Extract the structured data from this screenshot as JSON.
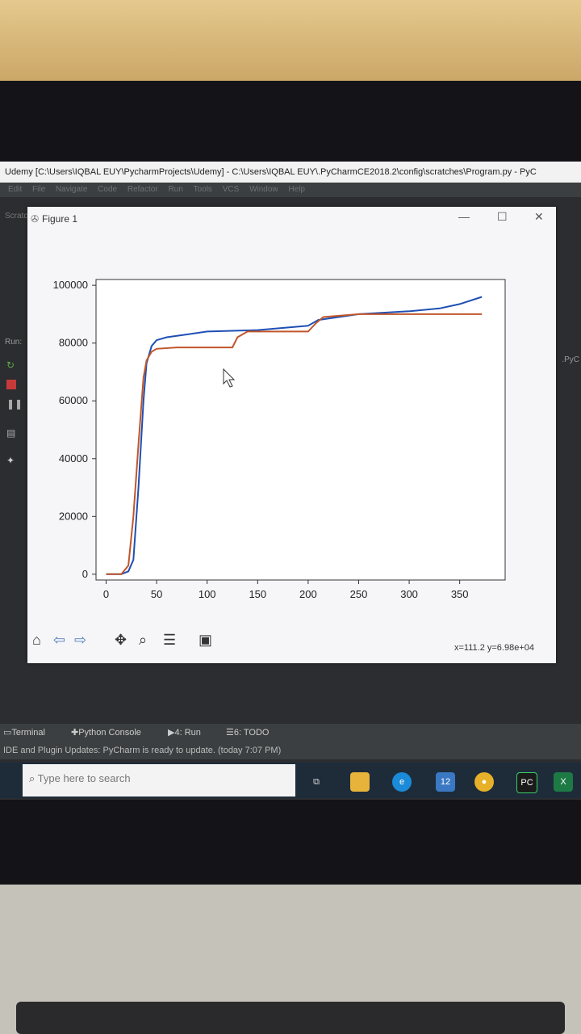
{
  "ide": {
    "title": "Udemy [C:\\Users\\IQBAL EUY\\PycharmProjects\\Udemy] - C:\\Users\\IQBAL EUY\\.PyCharmCE2018.2\\config\\scratches\\Program.py - PyC",
    "menu": [
      "Edit",
      "File",
      "Navigate",
      "Code",
      "Refactor",
      "Run",
      "Tools",
      "VCS",
      "Window",
      "Help"
    ],
    "left_tab": "Scratc",
    "run_label": "Run:",
    "right_label": ".PyC"
  },
  "figure": {
    "window_title": "Figure 1",
    "toolbar": [
      "home-icon",
      "back-icon",
      "forward-icon",
      "pan-icon",
      "zoom-icon",
      "configure-icon",
      "save-icon"
    ],
    "coord_readout": "x=111.2 y=6.98e+04"
  },
  "chart_data": {
    "type": "line",
    "title": "",
    "xlabel": "",
    "ylabel": "",
    "xlim": [
      -10,
      395
    ],
    "ylim": [
      -2000,
      102000
    ],
    "xticks": [
      0,
      50,
      100,
      150,
      200,
      250,
      300,
      350
    ],
    "yticks": [
      0,
      20000,
      40000,
      60000,
      80000,
      100000
    ],
    "ytick_labels": [
      "0",
      "20000",
      "40000",
      "60000",
      "80000",
      "100000"
    ],
    "xtick_labels": [
      "0",
      "50",
      "100",
      "150",
      "200",
      "250",
      "300",
      "350"
    ],
    "series": [
      {
        "color": "#1f4fb4",
        "x": [
          0,
          15,
          22,
          27,
          32,
          37,
          40,
          45,
          50,
          60,
          80,
          100,
          150,
          200,
          210,
          250,
          300,
          330,
          350,
          372
        ],
        "y": [
          0,
          0,
          1000,
          5000,
          30000,
          60000,
          73000,
          79000,
          81000,
          82000,
          83000,
          84000,
          84500,
          86000,
          88000,
          90000,
          91000,
          92000,
          93500,
          96000
        ]
      },
      {
        "color": "#c0562a",
        "x": [
          0,
          15,
          22,
          27,
          32,
          37,
          40,
          45,
          50,
          70,
          100,
          125,
          130,
          140,
          150,
          170,
          200,
          208,
          215,
          250,
          300,
          350,
          372
        ],
        "y": [
          0,
          0,
          3000,
          20000,
          45000,
          68000,
          74000,
          77000,
          78000,
          78500,
          78500,
          78500,
          82000,
          84000,
          84000,
          84000,
          84000,
          87000,
          89000,
          90000,
          90000,
          90000,
          90000
        ]
      }
    ]
  },
  "bottom_tabs": [
    "Terminal",
    "Python Console",
    "4: Run",
    "6: TODO"
  ],
  "status_text": "IDE and Plugin Updates: PyCharm is ready to update. (today 7:07 PM)",
  "taskbar": {
    "search_placeholder": "Type here to search",
    "badge": "12",
    "apps": [
      "task-view-icon",
      "file-explorer-icon",
      "edge-icon",
      "calendar-icon",
      "chrome-icon",
      "pycharm-icon",
      "excel-icon"
    ]
  }
}
